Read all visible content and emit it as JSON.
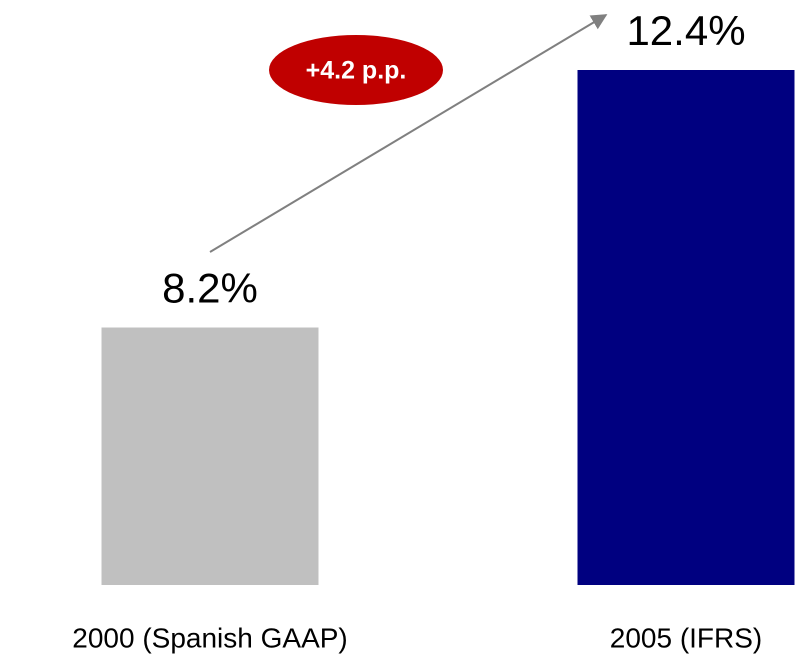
{
  "chart_data": {
    "type": "bar",
    "categories": [
      "2000 (Spanish GAAP)",
      "2005 (IFRS)"
    ],
    "values": [
      8.2,
      12.4
    ],
    "value_labels": [
      "8.2%",
      "12.4%"
    ],
    "colors": [
      "#c0c0c0",
      "#000080"
    ],
    "ylim": [
      4,
      12.4
    ],
    "annotation": "+4.2 p.p."
  }
}
